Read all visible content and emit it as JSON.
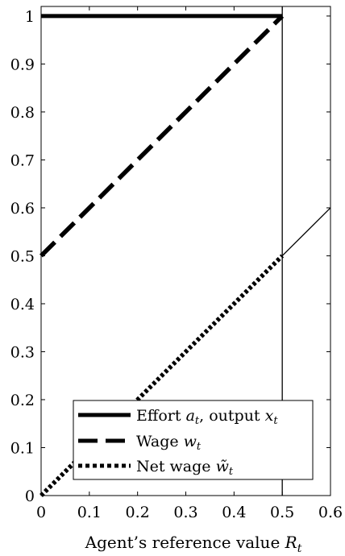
{
  "chart_data": {
    "type": "line",
    "title": "",
    "xlabel": "Agent’s reference value",
    "xlabel_symbol": "R",
    "xlabel_subscript": "t",
    "ylabel": "",
    "xlim": [
      0,
      0.6
    ],
    "ylim": [
      0,
      1.02
    ],
    "x_ticks": [
      0,
      0.1,
      0.2,
      0.3,
      0.4,
      0.5,
      0.6
    ],
    "x_tick_labels": [
      "0",
      "0.1",
      "0.2",
      "0.3",
      "0.4",
      "0.5",
      "0.6"
    ],
    "y_ticks": [
      0,
      0.1,
      0.2,
      0.3,
      0.4,
      0.5,
      0.6,
      0.7,
      0.8,
      0.9,
      1
    ],
    "y_tick_labels": [
      "0",
      "0.1",
      "0.2",
      "0.3",
      "0.4",
      "0.5",
      "0.6",
      "0.7",
      "0.8",
      "0.9",
      "1"
    ],
    "grid": false,
    "legend_position": "bottom-right",
    "series": [
      {
        "name": "Effort a_t, output x_t",
        "style": "solid-thick",
        "x": [
          0,
          0.5
        ],
        "y": [
          1,
          1
        ]
      },
      {
        "name": "Wage w_t",
        "style": "dashed-thick",
        "x": [
          0,
          0.5
        ],
        "y": [
          0.5,
          1
        ]
      },
      {
        "name": "Net wage w̃_t",
        "style": "dotted-thick",
        "x": [
          0,
          0.5
        ],
        "y": [
          0,
          0.5
        ]
      }
    ],
    "reference_lines": [
      {
        "kind": "vertical",
        "x": 0.5,
        "y": [
          0,
          1.02
        ]
      },
      {
        "kind": "diagonal",
        "x": [
          0.5,
          0.6
        ],
        "y": [
          0.5,
          0.6
        ]
      }
    ],
    "legend": [
      {
        "text": "Effort ",
        "sym1": "a",
        "sub1": "t",
        "mid": ", output ",
        "sym2": "x",
        "sub2": "t"
      },
      {
        "text": "Wage ",
        "sym1": "w",
        "sub1": "t"
      },
      {
        "text": "Net wage ",
        "sym1": "w̃",
        "sub1": "t"
      }
    ],
    "colors": {
      "line": "#000000",
      "background": "#ffffff"
    }
  }
}
